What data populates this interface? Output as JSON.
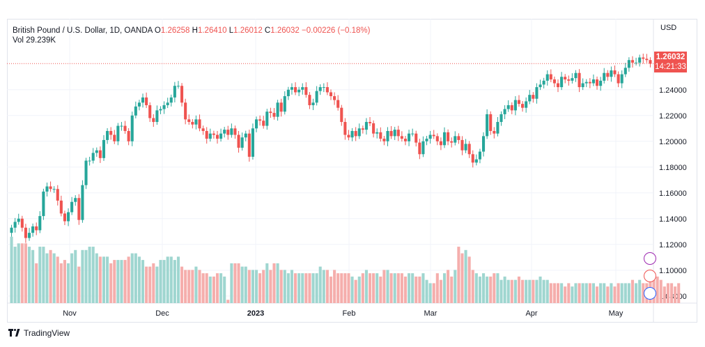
{
  "legend": {
    "symbol": "British Pound / U.S. Dollar, 1D, OANDA",
    "open_label": "O",
    "open": "1.26258",
    "high_label": "H",
    "high": "1.26410",
    "low_label": "L",
    "low": "1.26012",
    "close_label": "C",
    "close": "1.26032",
    "change": "−0.00226 (−0.18%)",
    "vol_label": "Vol",
    "vol": "29.239K"
  },
  "currency": "USD",
  "last_price": {
    "value": "1.26032",
    "countdown": "14:21:33"
  },
  "footer": {
    "brand": "TradingView"
  },
  "colors": {
    "up": "#26a69a",
    "down": "#ef5350",
    "vol_up": "#9fd6d0",
    "vol_down": "#f5aeac"
  },
  "chart_data": {
    "type": "candlestick",
    "y_ticks": [
      "1.24000",
      "1.22000",
      "1.20000",
      "1.18000",
      "1.16000",
      "1.14000",
      "1.12000",
      "1.10000",
      "1.08000"
    ],
    "y_range": [
      1.0745,
      1.295
    ],
    "x_labels": [
      "Nov",
      "Dec",
      "2023",
      "Feb",
      "Mar",
      "Apr",
      "May"
    ],
    "closes": [
      1.133,
      1.1375,
      1.14,
      1.133,
      1.125,
      1.129,
      1.134,
      1.131,
      1.142,
      1.161,
      1.165,
      1.163,
      1.163,
      1.154,
      1.144,
      1.138,
      1.145,
      1.153,
      1.156,
      1.139,
      1.166,
      1.185,
      1.185,
      1.191,
      1.193,
      1.187,
      1.201,
      1.208,
      1.205,
      1.2,
      1.212,
      1.212,
      1.208,
      1.2,
      1.22,
      1.227,
      1.23,
      1.234,
      1.228,
      1.218,
      1.215,
      1.224,
      1.225,
      1.228,
      1.23,
      1.234,
      1.243,
      1.243,
      1.23,
      1.217,
      1.215,
      1.213,
      1.217,
      1.21,
      1.208,
      1.202,
      1.206,
      1.205,
      1.202,
      1.206,
      1.209,
      1.205,
      1.21,
      1.205,
      1.195,
      1.203,
      1.206,
      1.188,
      1.21,
      1.217,
      1.216,
      1.212,
      1.223,
      1.222,
      1.219,
      1.23,
      1.223,
      1.235,
      1.24,
      1.242,
      1.238,
      1.24,
      1.242,
      1.236,
      1.228,
      1.23,
      1.239,
      1.242,
      1.242,
      1.238,
      1.235,
      1.232,
      1.226,
      1.215,
      1.205,
      1.203,
      1.208,
      1.204,
      1.21,
      1.209,
      1.215,
      1.214,
      1.206,
      1.207,
      1.202,
      1.2,
      1.208,
      1.204,
      1.209,
      1.204,
      1.202,
      1.2,
      1.206,
      1.206,
      1.199,
      1.19,
      1.2,
      1.202,
      1.205,
      1.204,
      1.2,
      1.197,
      1.207,
      1.2,
      1.199,
      1.204,
      1.201,
      1.193,
      1.198,
      1.19,
      1.1835,
      1.186,
      1.192,
      1.204,
      1.221,
      1.208,
      1.206,
      1.215,
      1.221,
      1.225,
      1.228,
      1.224,
      1.232,
      1.229,
      1.226,
      1.231,
      1.236,
      1.233,
      1.242,
      1.244,
      1.247,
      1.252,
      1.248,
      1.245,
      1.242,
      1.25,
      1.248,
      1.247,
      1.249,
      1.253,
      1.242,
      1.245,
      1.246,
      1.245,
      1.248,
      1.243,
      1.247,
      1.253,
      1.25,
      1.255,
      1.252,
      1.245,
      1.252,
      1.257,
      1.263,
      1.261,
      1.261,
      1.265,
      1.264,
      1.263,
      1.2603
    ],
    "volumes": [
      20,
      17,
      18,
      18,
      18,
      17,
      16,
      12,
      17,
      17,
      15,
      16,
      15,
      14,
      12,
      13,
      12,
      15,
      16,
      11,
      16,
      16,
      17,
      17,
      15,
      14,
      14,
      14,
      12,
      13,
      13,
      13,
      13,
      14,
      15,
      15,
      14,
      13,
      11,
      11,
      12,
      11,
      13,
      13,
      14,
      14,
      13,
      14,
      11,
      10,
      10,
      10,
      11,
      10,
      9,
      9,
      8,
      8,
      9,
      9,
      8,
      1,
      12,
      12,
      12,
      11,
      11,
      10,
      10,
      10,
      9,
      10,
      12,
      10,
      12,
      12,
      10,
      10,
      9,
      10,
      9,
      9,
      9,
      9,
      9,
      9,
      9,
      11,
      10,
      10,
      8,
      10,
      9,
      9,
      9,
      9,
      8,
      7,
      8,
      9,
      10,
      9,
      9,
      9,
      8,
      10,
      10,
      9,
      9,
      9,
      9,
      8,
      9,
      9,
      8,
      8,
      9,
      7,
      6,
      6,
      9,
      7,
      9,
      10,
      8,
      10,
      17,
      15,
      16,
      14,
      10,
      9,
      8,
      9,
      8,
      8,
      9,
      9,
      7,
      8,
      7,
      7,
      7,
      8,
      7,
      7,
      7,
      7,
      7,
      8,
      7,
      7,
      6,
      6,
      6,
      6,
      5,
      6,
      5,
      6,
      6,
      6,
      6,
      6,
      6,
      5,
      6,
      6,
      5,
      6,
      5,
      6,
      6,
      6,
      6,
      7,
      6,
      7,
      6,
      6,
      7,
      7,
      8,
      7,
      5,
      6,
      6,
      5,
      6
    ]
  }
}
